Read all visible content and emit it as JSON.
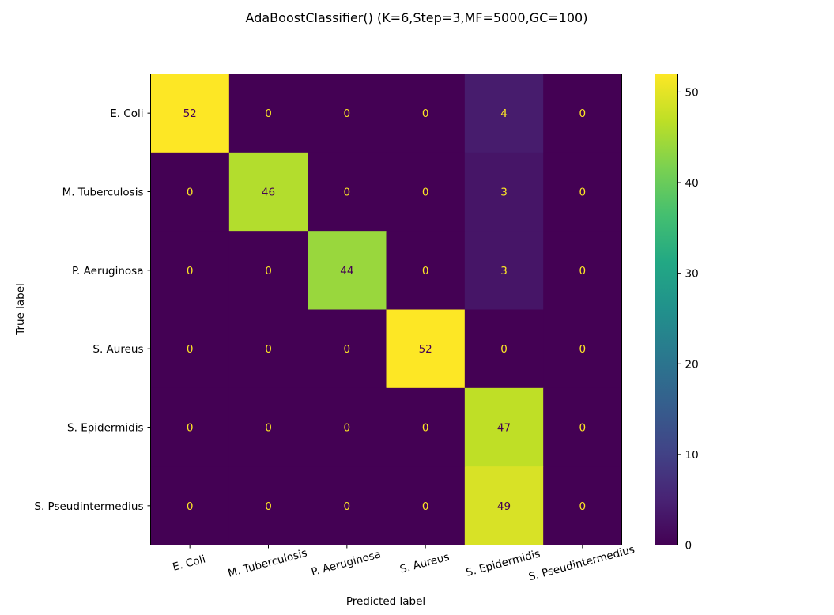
{
  "chart_data": {
    "type": "heatmap",
    "title": "AdaBoostClassifier() (K=6,Step=3,MF=5000,GC=100)",
    "xlabel": "Predicted label",
    "ylabel": "True label",
    "row_labels": [
      "E. Coli",
      "M. Tuberculosis",
      "P. Aeruginosa",
      "S. Aureus",
      "S. Epidermidis",
      "S. Pseudintermedius"
    ],
    "col_labels": [
      "E. Coli",
      "M. Tuberculosis",
      "P. Aeruginosa",
      "S. Aureus",
      "S. Epidermidis",
      "S. Pseudintermedius"
    ],
    "values": [
      [
        52,
        0,
        0,
        0,
        4,
        0
      ],
      [
        0,
        46,
        0,
        0,
        3,
        0
      ],
      [
        0,
        0,
        44,
        0,
        3,
        0
      ],
      [
        0,
        0,
        0,
        52,
        0,
        0
      ],
      [
        0,
        0,
        0,
        0,
        47,
        0
      ],
      [
        0,
        0,
        0,
        0,
        49,
        0
      ]
    ],
    "colorbar": {
      "colormap": "viridis",
      "range": [
        0,
        52
      ],
      "ticks": [
        0,
        10,
        20,
        30,
        40,
        50
      ]
    },
    "grid": false,
    "x_tick_rotation": "slanted"
  }
}
